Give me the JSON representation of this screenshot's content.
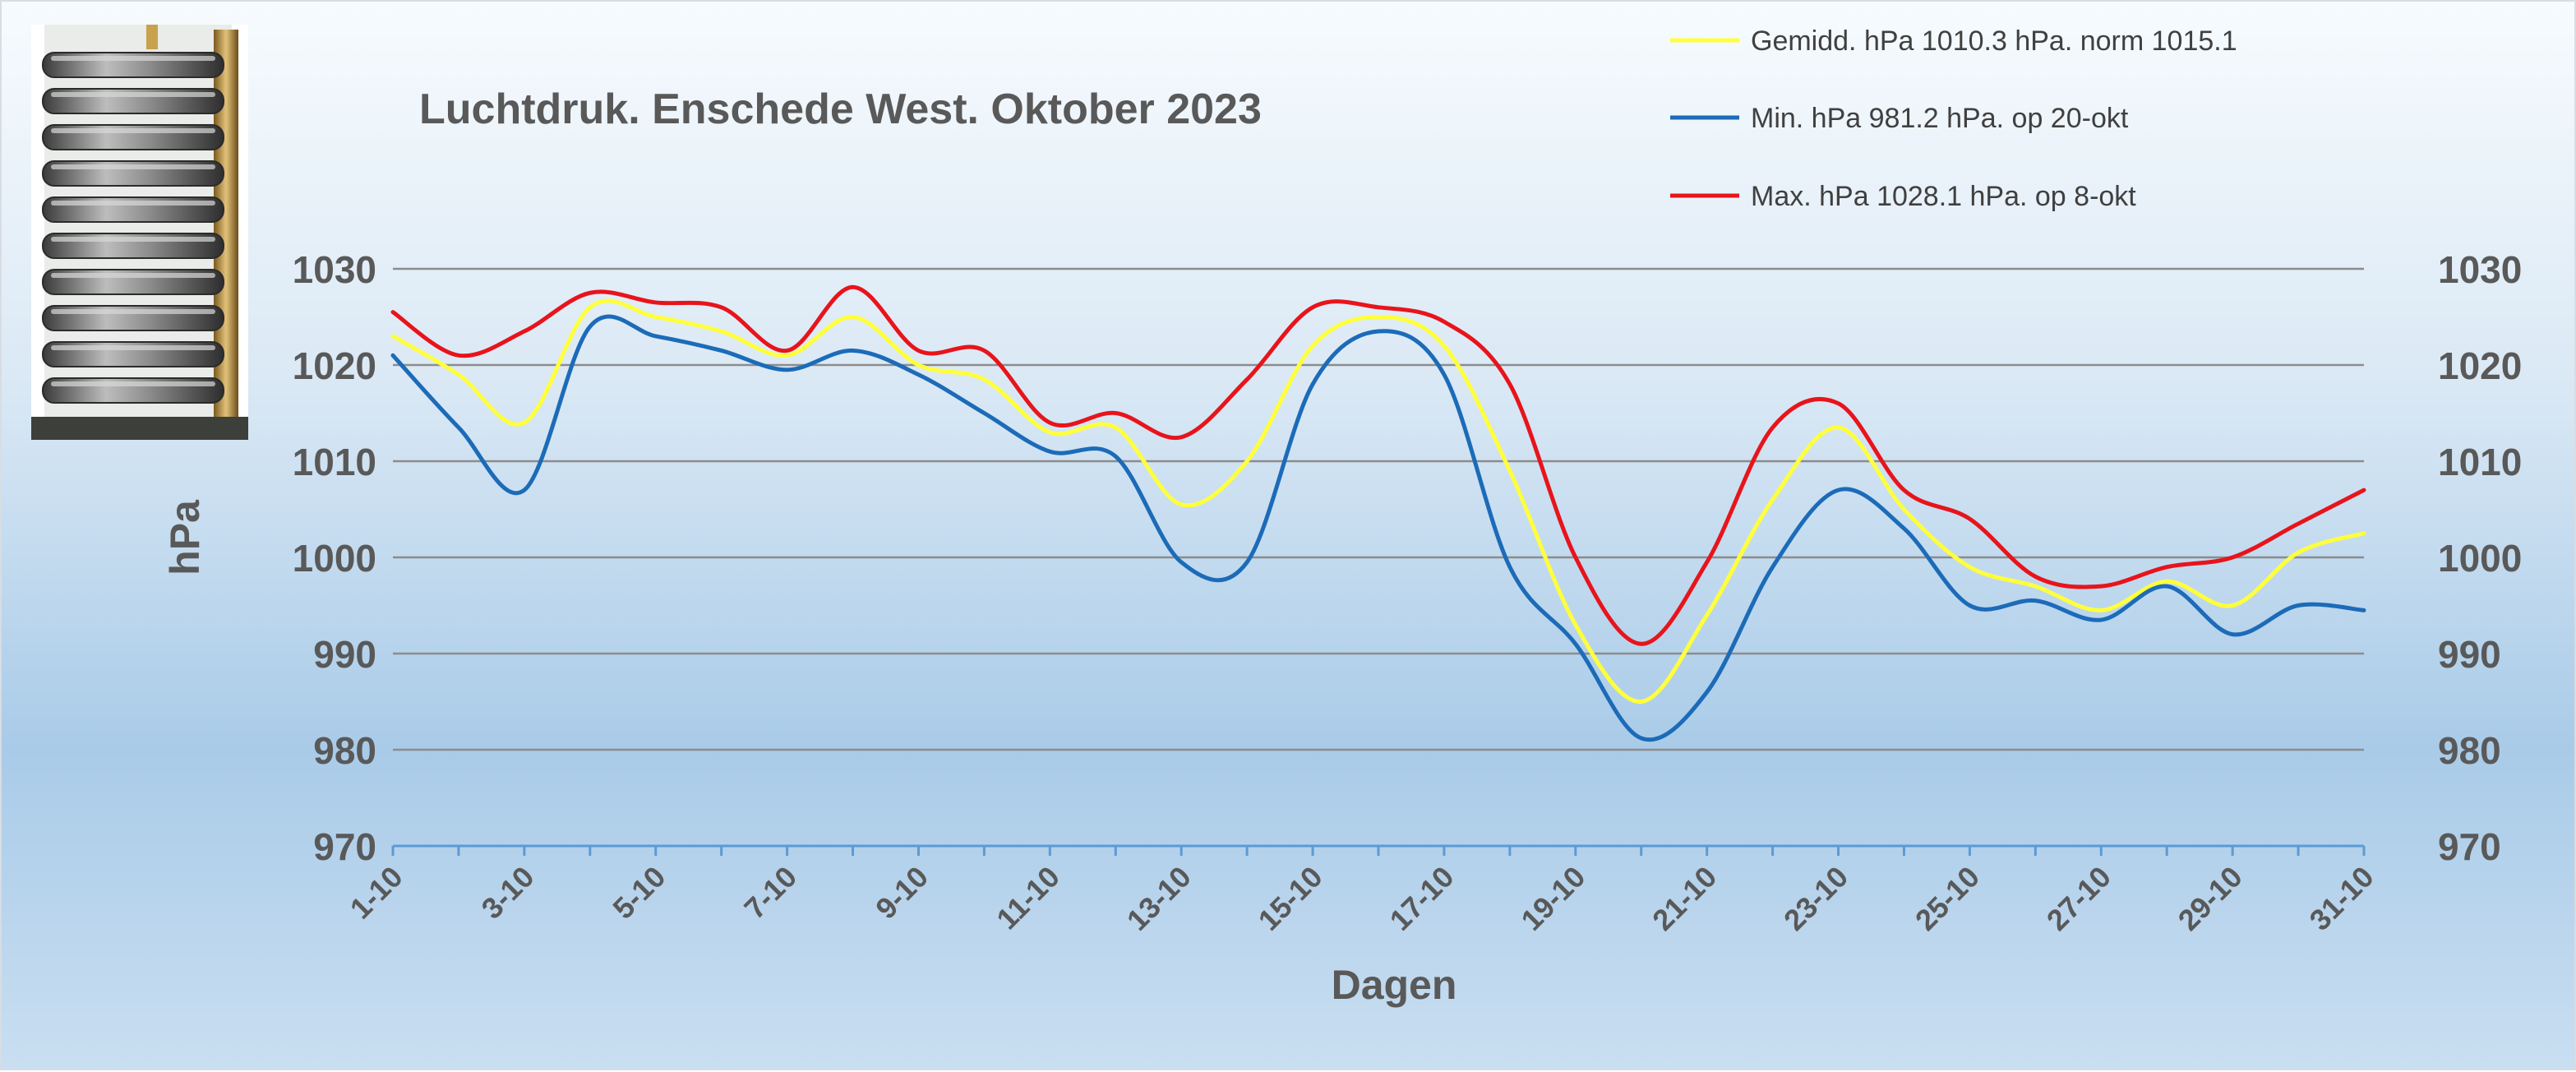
{
  "chart_data": {
    "type": "line",
    "title": "Luchtdruk. Enschede West. Oktober 2023",
    "xlabel": "Dagen",
    "ylabel": "hPa",
    "ylim": [
      970,
      1030
    ],
    "yticks": [
      970,
      980,
      990,
      1000,
      1010,
      1020,
      1030
    ],
    "grid": true,
    "legend_position": "top-right",
    "x": [
      "1-10",
      "2-10",
      "3-10",
      "4-10",
      "5-10",
      "6-10",
      "7-10",
      "8-10",
      "9-10",
      "10-10",
      "11-10",
      "12-10",
      "13-10",
      "14-10",
      "15-10",
      "16-10",
      "17-10",
      "18-10",
      "19-10",
      "20-10",
      "21-10",
      "22-10",
      "23-10",
      "24-10",
      "25-10",
      "26-10",
      "27-10",
      "28-10",
      "29-10",
      "30-10",
      "31-10"
    ],
    "x_tick_labels": [
      "1-10",
      "3-10",
      "5-10",
      "7-10",
      "9-10",
      "11-10",
      "13-10",
      "15-10",
      "17-10",
      "19-10",
      "21-10",
      "23-10",
      "25-10",
      "27-10",
      "29-10",
      "31-10"
    ],
    "series": [
      {
        "name": "Gemidd. hPa 1010.3 hPa.  norm 1015.1",
        "color": "#ffff3c",
        "values": [
          1023.0,
          1019.0,
          1014.0,
          1026.0,
          1025.0,
          1023.5,
          1021.0,
          1025.0,
          1020.0,
          1018.5,
          1013.0,
          1013.5,
          1005.5,
          1010.0,
          1022.0,
          1025.0,
          1022.0,
          1009.0,
          993.0,
          985.0,
          994.0,
          1006.0,
          1013.5,
          1005.0,
          999.0,
          997.0,
          994.5,
          997.5,
          995.0,
          1000.5,
          1002.5
        ]
      },
      {
        "name": "Min. hPa 981.2 hPa. op 20-okt",
        "color": "#1c6bb8",
        "values": [
          1021.0,
          1013.5,
          1007.0,
          1024.0,
          1023.0,
          1021.5,
          1019.5,
          1021.5,
          1019.0,
          1015.0,
          1011.0,
          1010.5,
          999.5,
          999.5,
          1018.0,
          1023.5,
          1019.0,
          999.0,
          991.0,
          981.2,
          986.0,
          999.0,
          1007.0,
          1003.0,
          995.0,
          995.5,
          993.5,
          997.0,
          992.0,
          995.0,
          994.5
        ]
      },
      {
        "name": "Max. hPa 1028.1 hPa.  op 8-okt",
        "color": "#e8141b",
        "values": [
          1025.5,
          1021.0,
          1023.5,
          1027.5,
          1026.5,
          1026.0,
          1021.5,
          1028.1,
          1021.5,
          1021.5,
          1014.0,
          1015.0,
          1012.5,
          1018.5,
          1026.0,
          1026.0,
          1024.5,
          1018.0,
          1000.0,
          991.0,
          999.5,
          1013.5,
          1016.0,
          1007.0,
          1004.0,
          998.0,
          997.0,
          999.0,
          1000.0,
          1003.5,
          1007.0
        ]
      }
    ]
  },
  "photo_name": "barometer-photo"
}
